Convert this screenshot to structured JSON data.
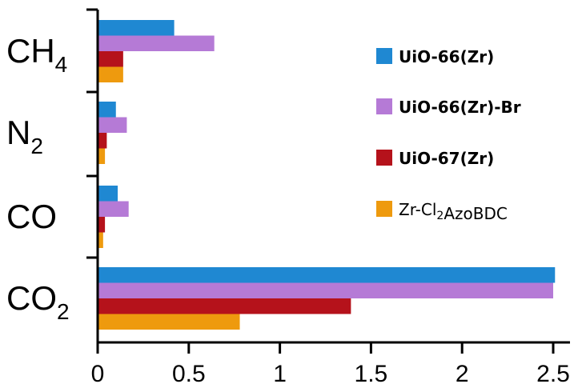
{
  "chart_data": {
    "type": "bar",
    "orientation": "horizontal",
    "categories": [
      {
        "base": "CH",
        "sub": "4"
      },
      {
        "base": "N",
        "sub": "2"
      },
      {
        "base": "CO",
        "sub": ""
      },
      {
        "base": "CO",
        "sub": "2"
      }
    ],
    "series": [
      {
        "name": "UiO-66(Zr)",
        "name_parts": [
          {
            "t": "UiO-66(Zr)"
          }
        ],
        "color": "#1f88d2",
        "values": [
          0.42,
          0.1,
          0.11,
          2.51
        ]
      },
      {
        "name": "UiO-66(Zr)-Br",
        "name_parts": [
          {
            "t": "UiO-66(Zr)-Br"
          }
        ],
        "color": "#b57ad6",
        "values": [
          0.64,
          0.16,
          0.17,
          2.5
        ]
      },
      {
        "name": "UiO-67(Zr)",
        "name_parts": [
          {
            "t": "UiO-67(Zr)"
          }
        ],
        "color": "#b5121b",
        "values": [
          0.14,
          0.05,
          0.04,
          1.39
        ]
      },
      {
        "name": "Zr-Cl2AzoBDC",
        "name_parts": [
          {
            "t": "Zr-Cl"
          },
          {
            "t": "2",
            "sub": true
          },
          {
            "t": "AzoBDC"
          }
        ],
        "color": "#ee9a0e",
        "values": [
          0.14,
          0.04,
          0.03,
          0.78
        ]
      }
    ],
    "xlim": [
      0,
      2.5
    ],
    "xticks": [
      0,
      0.5,
      1,
      1.5,
      2,
      2.5
    ],
    "xtick_labels": [
      "0",
      "0.5",
      "1",
      "1.5",
      "2",
      "2.5"
    ],
    "legend_position": "right",
    "grid": false
  }
}
